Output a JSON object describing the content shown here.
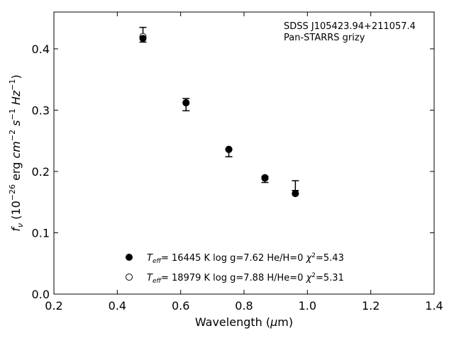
{
  "chart_data": {
    "type": "scatter",
    "title": "",
    "annotation_lines": [
      "SDSS J105423.94+211057.4",
      "Pan-STARRS grizy"
    ],
    "xlabel": "Wavelength (μm)",
    "ylabel": "f_ν (10^-26 erg cm^-2 s^-1 Hz^-1)",
    "xlim": [
      0.2,
      1.4
    ],
    "ylim": [
      0.0,
      0.46
    ],
    "xticks": [
      0.2,
      0.4,
      0.6,
      0.8,
      1.0,
      1.2,
      1.4
    ],
    "xtick_labels": [
      "0.2",
      "0.4",
      "0.6",
      "0.8",
      "1.0",
      "1.2",
      "1.4"
    ],
    "yticks": [
      0.0,
      0.1,
      0.2,
      0.3,
      0.4
    ],
    "ytick_labels": [
      "0.0",
      "0.1",
      "0.2",
      "0.3",
      "0.4"
    ],
    "grid": false,
    "legend_position": "lower-center",
    "observed": {
      "x": [
        0.481,
        0.617,
        0.752,
        0.866,
        0.962
      ],
      "y": [
        0.423,
        0.309,
        0.23,
        0.187,
        0.177
      ],
      "yerr": [
        0.012,
        0.01,
        0.006,
        0.005,
        0.008
      ]
    },
    "series": [
      {
        "name": "T_eff= 16445 K  log g=7.62  He/H=0  χ²=5.43",
        "marker": "filled-circle",
        "x": [
          0.481,
          0.617,
          0.752,
          0.866,
          0.962
        ],
        "y": [
          0.417,
          0.312,
          0.236,
          0.19,
          0.164
        ]
      },
      {
        "name": "T_eff= 18979 K  log g=7.88  H/He=0  χ²=5.31",
        "marker": "open-circle",
        "x": [
          0.481,
          0.617,
          0.752,
          0.866,
          0.962
        ],
        "y": [
          0.42,
          0.312,
          0.236,
          0.189,
          0.164
        ]
      }
    ],
    "colors": {
      "axis": "#000000",
      "marker": "#000000",
      "background": "#ffffff"
    }
  }
}
